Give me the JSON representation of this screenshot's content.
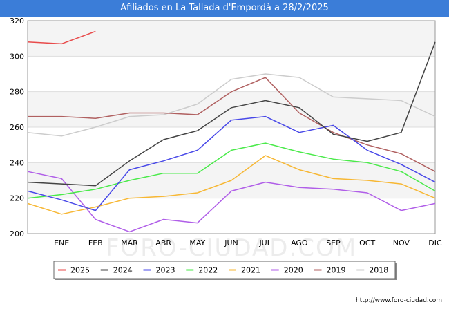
{
  "page": {
    "title": "Afiliados en La Tallada d'Empordà a 28/2/2025",
    "watermark": "FORO-CIUDAD.COM",
    "footer": "http://www.foro-ciudad.com"
  },
  "chart_data": {
    "type": "line",
    "title": "Afiliados en La Tallada d'Empordà a 28/2/2025",
    "xlabel": "",
    "ylabel": "",
    "categories": [
      "",
      "ENE",
      "FEB",
      "MAR",
      "ABR",
      "MAY",
      "JUN",
      "JUL",
      "AGO",
      "SEP",
      "OCT",
      "NOV",
      "DIC"
    ],
    "ylim": [
      200,
      320
    ],
    "yticks": [
      200,
      220,
      240,
      260,
      280,
      300,
      320
    ],
    "grid": "horizontal bands",
    "legend_position": "bottom",
    "series": [
      {
        "name": "2025",
        "color": "#e84a4a",
        "values": [
          308,
          307,
          314,
          null,
          null,
          null,
          null,
          null,
          null,
          null,
          null,
          null,
          null
        ]
      },
      {
        "name": "2024",
        "color": "#444444",
        "values": [
          229,
          228,
          227,
          241,
          253,
          258,
          271,
          275,
          271,
          256,
          252,
          257,
          308
        ]
      },
      {
        "name": "2023",
        "color": "#4848e8",
        "values": [
          224,
          219,
          213,
          236,
          241,
          247,
          264,
          266,
          257,
          261,
          247,
          239,
          229
        ]
      },
      {
        "name": "2022",
        "color": "#4aea4a",
        "values": [
          220,
          222,
          225,
          230,
          234,
          234,
          247,
          251,
          246,
          242,
          240,
          235,
          224
        ]
      },
      {
        "name": "2021",
        "color": "#f7b733",
        "values": [
          217,
          211,
          215,
          220,
          221,
          223,
          230,
          244,
          236,
          231,
          230,
          228,
          220
        ]
      },
      {
        "name": "2020",
        "color": "#b05ee8",
        "values": [
          235,
          231,
          208,
          201,
          208,
          206,
          224,
          229,
          226,
          225,
          223,
          213,
          217
        ]
      },
      {
        "name": "2019",
        "color": "#b06060",
        "values": [
          266,
          266,
          265,
          268,
          268,
          267,
          280,
          288,
          268,
          257,
          250,
          245,
          235
        ]
      },
      {
        "name": "2018",
        "color": "#cccccc",
        "values": [
          257,
          255,
          260,
          266,
          267,
          273,
          287,
          290,
          288,
          277,
          276,
          275,
          266
        ]
      }
    ]
  }
}
